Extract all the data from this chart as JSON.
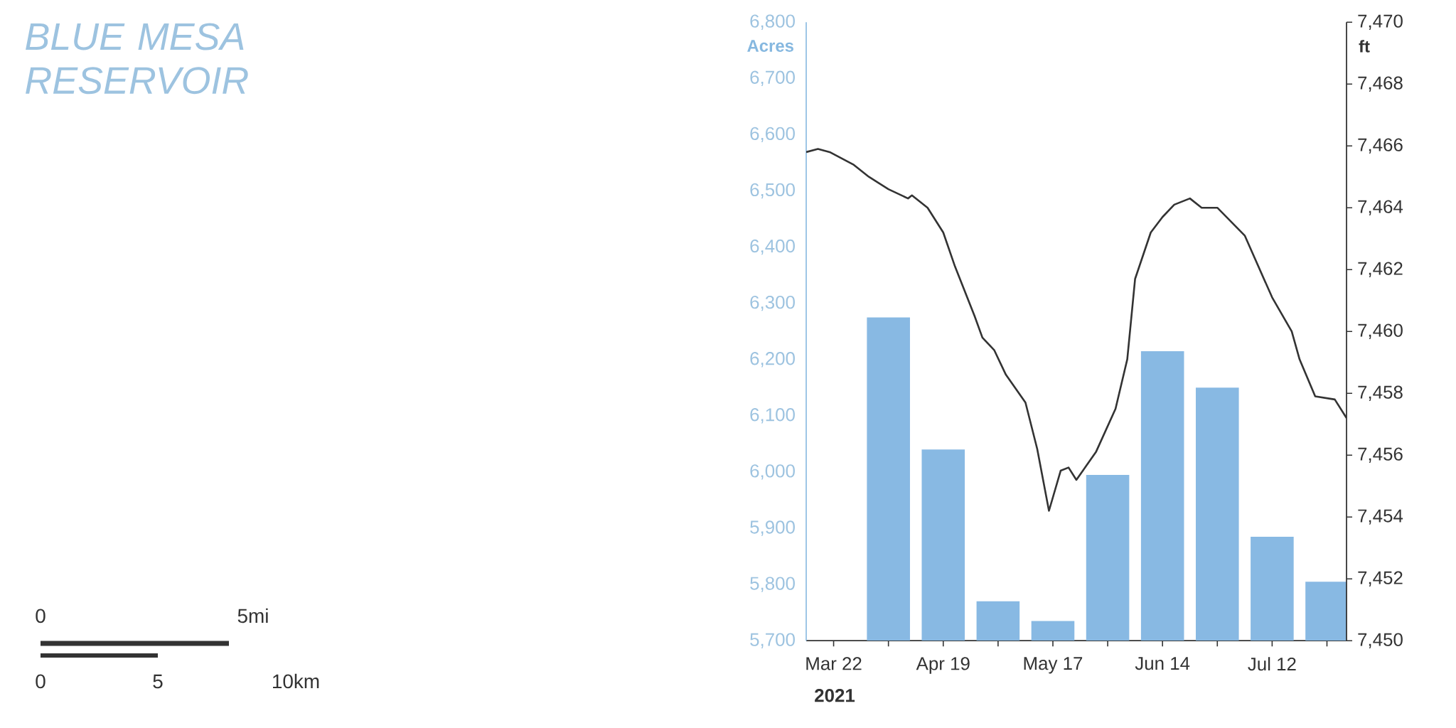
{
  "chart_data": {
    "type": "bar",
    "title": "BLUE MESA RESERVOIR",
    "ylabel": "Acres",
    "y2label": "ft",
    "annotations": [
      "2021",
      "0",
      "5mi",
      "0",
      "5",
      "10km"
    ],
    "xlim": [
      "2021-03-15",
      "2021-07-31"
    ],
    "xticks": [
      {
        "value": "2021-03-22",
        "label": "Mar 22"
      },
      {
        "value": "2021-04-05",
        "label": null
      },
      {
        "value": "2021-04-19",
        "label": "Apr 19"
      },
      {
        "value": "2021-05-03",
        "label": null
      },
      {
        "value": "2021-05-17",
        "label": "May 17"
      },
      {
        "value": "2021-05-31",
        "label": null
      },
      {
        "value": "2021-06-14",
        "label": "Jun 14"
      },
      {
        "value": "2021-06-28",
        "label": null
      },
      {
        "value": "2021-07-12",
        "label": "Jul 12"
      },
      {
        "value": "2021-07-26",
        "label": null
      }
    ],
    "ylim": [
      5700,
      6800
    ],
    "yticks": [
      {
        "value": 5700,
        "label": "5,700"
      },
      {
        "value": 5800,
        "label": "5,800"
      },
      {
        "value": 5900,
        "label": "5,900"
      },
      {
        "value": 6000,
        "label": "6,000"
      },
      {
        "value": 6100,
        "label": "6,100"
      },
      {
        "value": 6200,
        "label": "6,200"
      },
      {
        "value": 6300,
        "label": "6,300"
      },
      {
        "value": 6400,
        "label": "6,400"
      },
      {
        "value": 6500,
        "label": "6,500"
      },
      {
        "value": 6600,
        "label": "6,600"
      },
      {
        "value": 6700,
        "label": "6,700"
      },
      {
        "value": 6800,
        "label": "6,800"
      }
    ],
    "y2lim": [
      7450,
      7470
    ],
    "y2ticks": [
      {
        "value": 7450,
        "label": "7,450"
      },
      {
        "value": 7452,
        "label": "7,452"
      },
      {
        "value": 7454,
        "label": "7,454"
      },
      {
        "value": 7456,
        "label": "7,456"
      },
      {
        "value": 7458,
        "label": "7,458"
      },
      {
        "value": 7460,
        "label": "7,460"
      },
      {
        "value": 7462,
        "label": "7,462"
      },
      {
        "value": 7464,
        "label": "7,464"
      },
      {
        "value": 7466,
        "label": "7,466"
      },
      {
        "value": 7468,
        "label": "7,468"
      },
      {
        "value": 7470,
        "label": "7,470"
      }
    ],
    "series": [
      {
        "color": "#88b9e3",
        "x": [
          "2021-04-05",
          "2021-04-19",
          "2021-05-03",
          "2021-05-17",
          "2021-05-31",
          "2021-06-14",
          "2021-06-28",
          "2021-07-12",
          "2021-07-26"
        ],
        "values": [
          6275,
          6040,
          5770,
          5735,
          5995,
          6215,
          6150,
          5885,
          5805
        ]
      },
      {
        "type": "line",
        "axis": "y2",
        "color": "#333333",
        "x": [
          "2021-03-15",
          "2021-03-18",
          "2021-03-21",
          "2021-03-27",
          "2021-03-31",
          "2021-04-05",
          "2021-04-10",
          "2021-04-11",
          "2021-04-15",
          "2021-04-19",
          "2021-04-22",
          "2021-04-27",
          "2021-04-29",
          "2021-05-02",
          "2021-05-05",
          "2021-05-10",
          "2021-05-13",
          "2021-05-16",
          "2021-05-19",
          "2021-05-21",
          "2021-05-23",
          "2021-05-28",
          "2021-06-02",
          "2021-06-05",
          "2021-06-07",
          "2021-06-11",
          "2021-06-14",
          "2021-06-17",
          "2021-06-21",
          "2021-06-24",
          "2021-06-28",
          "2021-07-05",
          "2021-07-12",
          "2021-07-17",
          "2021-07-19",
          "2021-07-23",
          "2021-07-28",
          "2021-07-31"
        ],
        "values": [
          7465.8,
          7465.9,
          7465.8,
          7465.4,
          7465.0,
          7464.6,
          7464.3,
          7464.4,
          7464.0,
          7463.2,
          7462.1,
          7460.5,
          7459.8,
          7459.4,
          7458.6,
          7457.7,
          7456.2,
          7454.2,
          7455.5,
          7455.6,
          7455.2,
          7456.1,
          7457.5,
          7459.1,
          7461.7,
          7463.2,
          7463.7,
          7464.1,
          7464.3,
          7464.0,
          7464.0,
          7463.1,
          7461.1,
          7460.0,
          7459.1,
          7457.9,
          7457.8,
          7457.2
        ]
      }
    ]
  }
}
